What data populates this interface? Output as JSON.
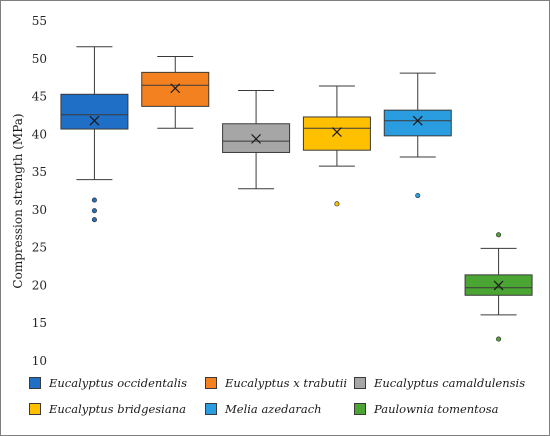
{
  "chart_data": {
    "type": "box",
    "title": "",
    "xlabel": "",
    "ylabel": "Compression strength (MPa)",
    "ylim": [
      10,
      55
    ],
    "yticks": [
      10,
      15,
      20,
      25,
      30,
      35,
      40,
      45,
      50,
      55
    ],
    "grid": false,
    "legend_position": "bottom",
    "series": [
      {
        "name": "Eucalyptus occidentalis",
        "color": "#1f6fc6",
        "min": 34.0,
        "q1": 40.7,
        "median": 42.6,
        "q3": 45.3,
        "max": 51.6,
        "mean": 41.8,
        "outliers": [
          31.3,
          29.9,
          28.7
        ]
      },
      {
        "name": "Eucalyptus x trabutii",
        "color": "#f4811f",
        "min": 40.8,
        "q1": 43.7,
        "median": 46.5,
        "q3": 48.2,
        "max": 50.3,
        "mean": 46.1,
        "outliers": []
      },
      {
        "name": "Eucalyptus camaldulensis",
        "color": "#a6a6a6",
        "min": 32.8,
        "q1": 37.6,
        "median": 39.1,
        "q3": 41.4,
        "max": 45.8,
        "mean": 39.4,
        "outliers": []
      },
      {
        "name": "Eucalyptus bridgesiana",
        "color": "#ffc000",
        "min": 35.8,
        "q1": 37.9,
        "median": 40.8,
        "q3": 42.3,
        "max": 46.4,
        "mean": 40.3,
        "outliers": [
          30.8
        ]
      },
      {
        "name": "Melia azedarach",
        "color": "#2a9de0",
        "min": 37.0,
        "q1": 39.8,
        "median": 41.8,
        "q3": 43.2,
        "max": 48.1,
        "mean": 41.8,
        "outliers": [
          31.9
        ]
      },
      {
        "name": "Paulownia tomentosa",
        "color": "#4aa532",
        "min": 16.1,
        "q1": 18.7,
        "median": 19.7,
        "q3": 21.4,
        "max": 24.9,
        "mean": 20.0,
        "outliers": [
          26.7,
          12.9
        ]
      }
    ]
  }
}
